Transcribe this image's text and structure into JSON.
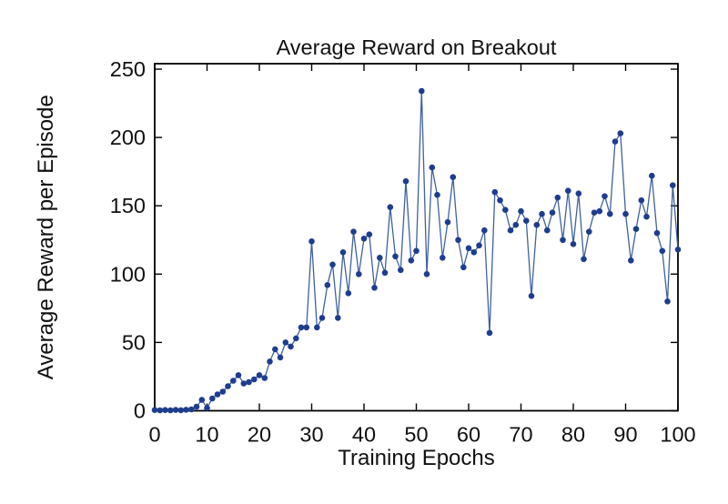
{
  "chart_data": {
    "type": "line",
    "title": "Average Reward on Breakout",
    "xlabel": "Training Epochs",
    "ylabel": "Average Reward per Episode",
    "xlim": [
      0,
      100
    ],
    "ylim": [
      0,
      254
    ],
    "xticks": [
      0,
      10,
      20,
      30,
      40,
      50,
      60,
      70,
      80,
      90,
      100
    ],
    "yticks": [
      0,
      50,
      100,
      150,
      200,
      250
    ],
    "grid": false,
    "legend": null,
    "marker": "filled-circle",
    "line_color": "#40619f",
    "marker_color": "#1f3d8e",
    "axis_color": "#000000",
    "x": [
      0,
      1,
      2,
      3,
      4,
      5,
      6,
      7,
      8,
      9,
      10,
      11,
      12,
      13,
      14,
      15,
      16,
      17,
      18,
      19,
      20,
      21,
      22,
      23,
      24,
      25,
      26,
      27,
      28,
      29,
      30,
      31,
      32,
      33,
      34,
      35,
      36,
      37,
      38,
      39,
      40,
      41,
      42,
      43,
      44,
      45,
      46,
      47,
      48,
      49,
      50,
      51,
      52,
      53,
      54,
      55,
      56,
      57,
      58,
      59,
      60,
      61,
      62,
      63,
      64,
      65,
      66,
      67,
      68,
      69,
      70,
      71,
      72,
      73,
      74,
      75,
      76,
      77,
      78,
      79,
      80,
      81,
      82,
      83,
      84,
      85,
      86,
      87,
      88,
      89,
      90,
      91,
      92,
      93,
      94,
      95,
      96,
      97,
      98,
      99,
      100
    ],
    "y": [
      0.5,
      0.3,
      0.5,
      0.3,
      0.6,
      0.4,
      0.7,
      1,
      3,
      8,
      2,
      9,
      12,
      14,
      18,
      22,
      26,
      20,
      21,
      23,
      26,
      24,
      36,
      45,
      39,
      50,
      47,
      53,
      61,
      61,
      124,
      61,
      68,
      92,
      107,
      68,
      116,
      86,
      131,
      100,
      126,
      129,
      90,
      112,
      101,
      149,
      113,
      103,
      168,
      110,
      117,
      234,
      100,
      178,
      158,
      112,
      138,
      171,
      125,
      105,
      119,
      116,
      121,
      132,
      57,
      160,
      154,
      147,
      132,
      136,
      146,
      139,
      84,
      136,
      144,
      132,
      145,
      156,
      125,
      161,
      122,
      159,
      111,
      131,
      145,
      146,
      157,
      144,
      197,
      203,
      144,
      110,
      133,
      154,
      142,
      172,
      130,
      117,
      80,
      165,
      118
    ]
  }
}
